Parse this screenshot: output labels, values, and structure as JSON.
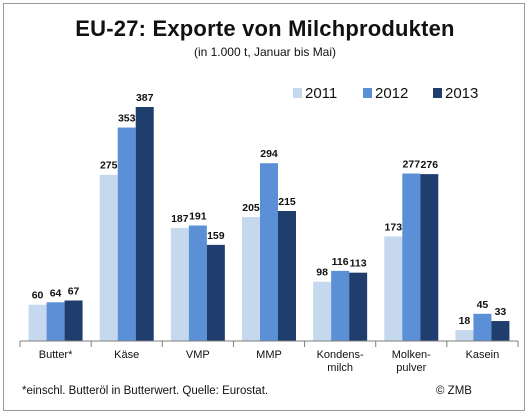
{
  "title": "EU-27: Exporte von Milchprodukten",
  "subtitle": "(in 1.000 t, Januar bis Mai)",
  "footnote": "*einschl. Butteröl in Butterwert. Quelle: Eurostat.",
  "copyright": "© ZMB",
  "chart_data": {
    "type": "bar",
    "categories": [
      [
        "Butter*"
      ],
      [
        "Käse"
      ],
      [
        "VMP"
      ],
      [
        "MMP"
      ],
      [
        "Kondens-",
        "milch"
      ],
      [
        "Molken-",
        "pulver"
      ],
      [
        "Kasein"
      ]
    ],
    "series": [
      {
        "name": "2011",
        "color": "#c5d8ee",
        "values": [
          60,
          275,
          187,
          205,
          98,
          173,
          18
        ]
      },
      {
        "name": "2012",
        "color": "#5b8fd6",
        "values": [
          64,
          353,
          191,
          294,
          116,
          277,
          45
        ]
      },
      {
        "name": "2013",
        "color": "#1f3e6e",
        "values": [
          67,
          387,
          159,
          215,
          113,
          276,
          33
        ]
      }
    ],
    "ylim": [
      0,
      400
    ],
    "legend_position": "top-right",
    "grid": false
  }
}
